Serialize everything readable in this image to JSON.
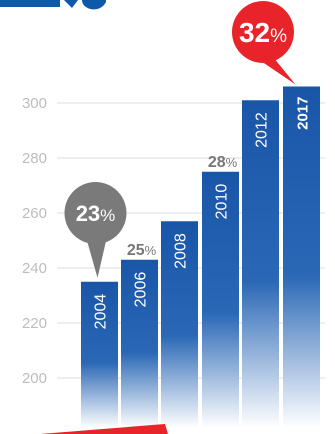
{
  "chart_data": {
    "type": "bar",
    "categories": [
      "2004",
      "2006",
      "2008",
      "2010",
      "2012",
      "2017"
    ],
    "values": [
      235,
      243,
      257,
      275,
      301,
      306
    ],
    "yticks": [
      200,
      220,
      240,
      260,
      280,
      300
    ],
    "ylim": [
      195,
      310
    ],
    "grid": true,
    "title": "",
    "xlabel": "",
    "ylabel": "",
    "annotations": [
      {
        "category": "2004",
        "number": "23",
        "unit": "%",
        "style": "gray-bubble"
      },
      {
        "category": "2006",
        "number": "25",
        "unit": "%",
        "style": "plain-gray"
      },
      {
        "category": "2010",
        "number": "28",
        "unit": "%",
        "style": "plain-gray"
      },
      {
        "category": "2017",
        "number": "32",
        "unit": "%",
        "style": "red-bubble"
      }
    ]
  },
  "colors": {
    "bar_top": "#1a56a8",
    "bar_bottom": "#ffffff",
    "grid": "#dcdcdc",
    "gray_bubble": "#7a7a7a",
    "plain_gray_text": "#777777",
    "red_bubble": "#e8242a",
    "header_blue": "#0e5aa8"
  }
}
